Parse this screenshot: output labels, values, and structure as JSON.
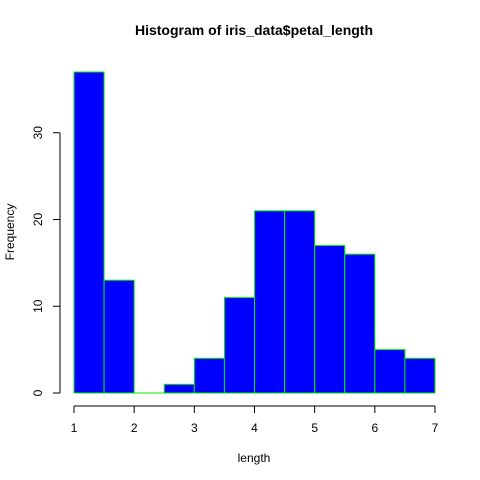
{
  "chart_data": {
    "type": "bar",
    "title": "Histogram of iris_data$petal_length",
    "xlabel": "length",
    "ylabel": "Frequency",
    "bin_edges": [
      1,
      1.5,
      2,
      2.5,
      3,
      3.5,
      4,
      4.5,
      5,
      5.5,
      6,
      6.5,
      7
    ],
    "values": [
      37,
      13,
      0,
      1,
      4,
      11,
      21,
      21,
      17,
      16,
      5,
      4
    ],
    "xlim": [
      1,
      7
    ],
    "ylim": [
      0,
      37
    ],
    "x_ticks": [
      1,
      2,
      3,
      4,
      5,
      6,
      7
    ],
    "y_ticks": [
      0,
      10,
      20,
      30
    ],
    "grid": false,
    "fill_color": "#0000ff",
    "border_color": "#00ee00"
  }
}
